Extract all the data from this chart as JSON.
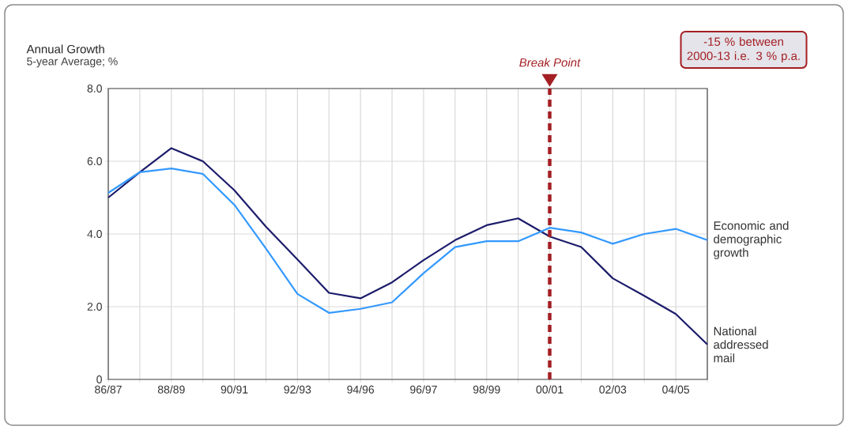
{
  "chart_data": {
    "type": "line",
    "ylabel": "Annual Growth",
    "subtitle": "5-year Average; %",
    "categories": [
      "86/87",
      null,
      "88/89",
      null,
      "90/91",
      null,
      "92/93",
      null,
      "94/96",
      null,
      "96/97",
      null,
      "98/99",
      null,
      "00/01",
      null,
      "02/03",
      null,
      "04/05",
      null
    ],
    "series": [
      {
        "name": "National addressed mail",
        "color": "#1c1c6b",
        "values": [
          5.0,
          5.7,
          6.36,
          6.0,
          5.2,
          4.2,
          3.3,
          2.38,
          2.23,
          2.67,
          3.28,
          3.83,
          4.24,
          4.43,
          3.93,
          3.64,
          2.78,
          2.3,
          1.8,
          0.96
        ]
      },
      {
        "name": "Economic and demographic growth",
        "color": "#3399ff",
        "values": [
          5.13,
          5.7,
          5.8,
          5.65,
          4.8,
          3.6,
          2.35,
          1.83,
          1.94,
          2.12,
          2.92,
          3.64,
          3.8,
          3.8,
          4.17,
          4.04,
          3.73,
          4.0,
          4.14,
          3.83
        ]
      }
    ],
    "ylim": [
      0,
      8
    ],
    "yticks": [
      0,
      {
        "value": 2,
        "label": "2.0"
      },
      {
        "value": 4,
        "label": "4.0"
      },
      {
        "value": 6,
        "label": "6.0"
      },
      {
        "value": 8,
        "label": "8.0"
      }
    ],
    "grid": true,
    "ref_lines": [
      {
        "axis": "x",
        "value": "00/01",
        "label": "Break Point",
        "color": "#a31f24",
        "line_style": "dashed"
      }
    ],
    "annotations": [
      "-15 % between 2000-13 i.e. 3 % p.a."
    ]
  }
}
